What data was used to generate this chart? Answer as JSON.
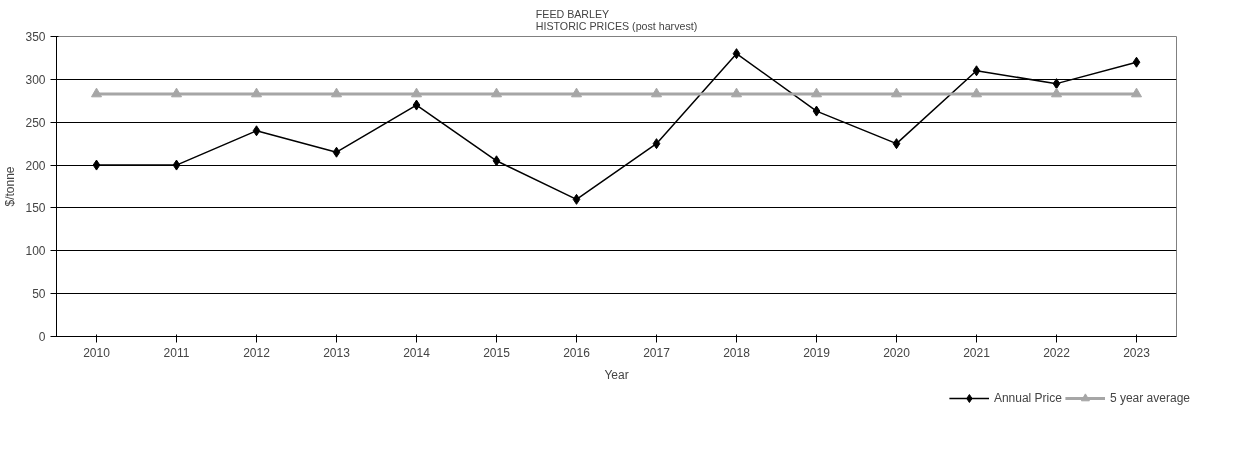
{
  "chart_data": {
    "type": "line",
    "title": "FEED BARLEY\nHISTORIC PRICES (post harvest)",
    "xlabel": "Year",
    "ylabel": "$/tonne",
    "categories": [
      "2010",
      "2011",
      "2012",
      "2013",
      "2014",
      "2015",
      "2016",
      "2017",
      "2018",
      "2019",
      "2020",
      "2021",
      "2022",
      "2023"
    ],
    "series": [
      {
        "name": "Annual Price",
        "color": "#000000",
        "marker": "diamond",
        "values": [
          200,
          200,
          240,
          215,
          270,
          205,
          160,
          225,
          330,
          263,
          225,
          310,
          295,
          320
        ]
      },
      {
        "name": "5 year average",
        "color": "#a6a6a6",
        "marker": "triangle",
        "values": [
          283,
          283,
          283,
          283,
          283,
          283,
          283,
          283,
          283,
          283,
          283,
          283,
          283,
          283
        ]
      }
    ],
    "ylim": [
      0,
      350
    ],
    "yticks": [
      0,
      50,
      100,
      150,
      200,
      250,
      300,
      350
    ],
    "grid": "y",
    "legend": "bottom right"
  }
}
